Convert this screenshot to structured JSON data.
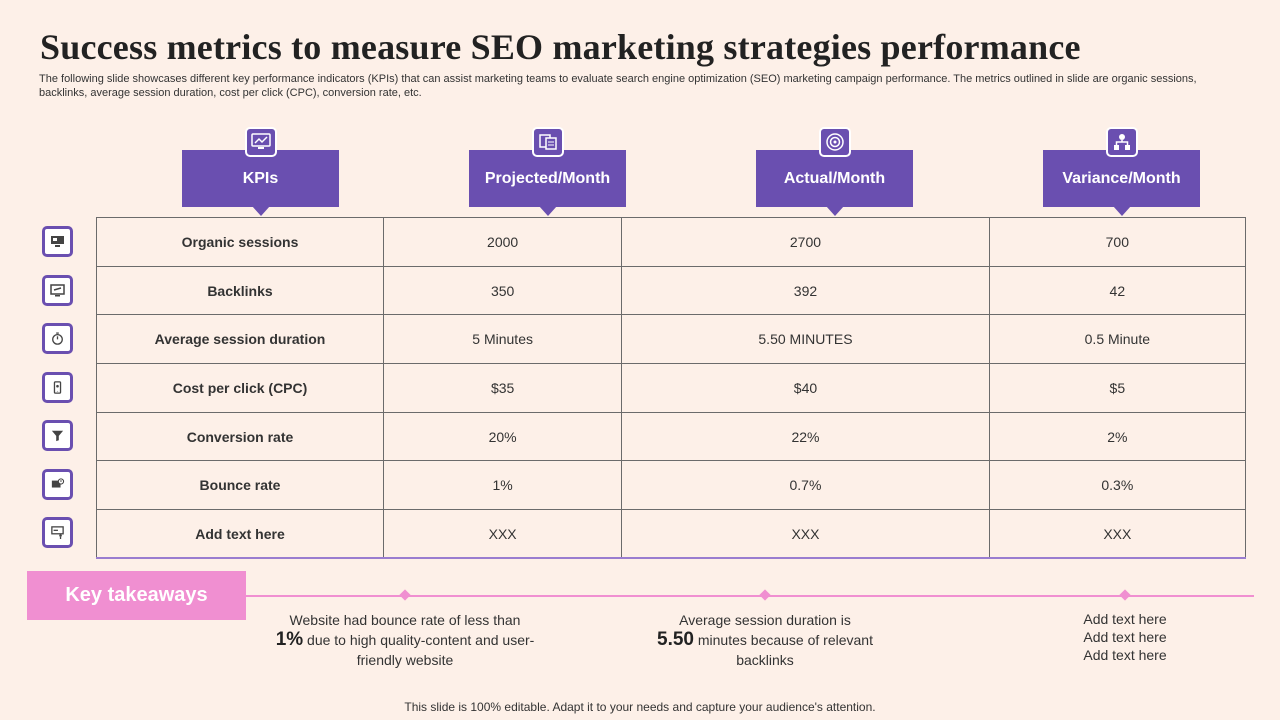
{
  "title": "Success metrics to measure SEO marketing strategies performance",
  "subtitle": "The following slide showcases different key performance indicators (KPIs) that can assist marketing teams to evaluate search engine optimization (SEO) marketing campaign performance. The metrics outlined in slide are organic sessions, backlinks, average session duration, cost per click (CPC), conversion rate, etc.",
  "headers": [
    "KPIs",
    "Projected/Month",
    "Actual/Month",
    "Variance/Month"
  ],
  "header_icons": [
    "dashboard-icon",
    "documents-icon",
    "target-icon",
    "network-icon"
  ],
  "rows": [
    {
      "kpi": "Organic sessions",
      "projected": "2000",
      "actual": "2700",
      "variance": "700",
      "variance_status": "positive",
      "icon": "monitor-icon"
    },
    {
      "kpi": "Backlinks",
      "projected": "350",
      "actual": "392",
      "variance": "42",
      "variance_status": "positive",
      "icon": "link-screen-icon"
    },
    {
      "kpi": "Average session duration",
      "projected": "5 Minutes",
      "actual": "5.50 MINUTES",
      "variance": "0.5 Minute",
      "variance_status": "positive",
      "icon": "stopwatch-icon"
    },
    {
      "kpi": "Cost per click (CPC)",
      "projected": "$35",
      "actual": "$40",
      "variance": "$5",
      "variance_status": "negative",
      "icon": "mobile-click-icon"
    },
    {
      "kpi": "Conversion rate",
      "projected": "20%",
      "actual": "22%",
      "variance": "2%",
      "variance_status": "positive",
      "icon": "funnel-icon"
    },
    {
      "kpi": "Bounce rate",
      "projected": "1%",
      "actual": "0.7%",
      "variance": "0.3%",
      "variance_status": "positive",
      "icon": "laptop-alert-icon"
    },
    {
      "kpi": "Add text here",
      "projected": "XXX",
      "actual": "XXX",
      "variance": "XXX",
      "variance_status": "positive",
      "icon": "presentation-icon"
    }
  ],
  "colors": {
    "accent": "#6a4fb0",
    "takeaway": "#f08fd1",
    "positive": "#6aaa3a",
    "negative": "#d42b2b",
    "background": "#fdf0e8"
  },
  "takeaways": {
    "label": "Key takeaways",
    "t1": {
      "pre": "Website had bounce rate of less than",
      "highlight": "1%",
      "post": "due to high quality-content and user-friendly website"
    },
    "t2": {
      "pre": "Average session duration is",
      "highlight": "5.50",
      "post": "minutes because of relevant backlinks"
    },
    "t3": {
      "line1": "Add text here",
      "line2": "Add text here",
      "line3": "Add text here"
    }
  },
  "footer": "This slide is 100% editable. Adapt it to your needs and capture your audience's attention."
}
